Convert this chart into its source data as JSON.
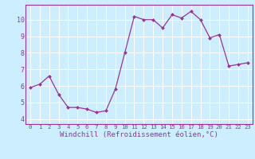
{
  "x": [
    0,
    1,
    2,
    3,
    4,
    5,
    6,
    7,
    8,
    9,
    10,
    11,
    12,
    13,
    14,
    15,
    16,
    17,
    18,
    19,
    20,
    21,
    22,
    23
  ],
  "y": [
    5.9,
    6.1,
    6.6,
    5.5,
    4.7,
    4.7,
    4.6,
    4.4,
    4.5,
    5.8,
    8.0,
    10.2,
    10.0,
    10.0,
    9.5,
    10.3,
    10.1,
    10.5,
    10.0,
    8.9,
    9.1,
    7.2,
    7.3,
    7.4
  ],
  "line_color": "#993399",
  "marker": "D",
  "marker_size": 2.0,
  "linewidth": 0.9,
  "xlabel": "Windchill (Refroidissement éolien,°C)",
  "xlabel_fontsize": 6.5,
  "ylabel_ticks": [
    4,
    5,
    6,
    7,
    8,
    9,
    10
  ],
  "xtick_labels": [
    "0",
    "1",
    "2",
    "3",
    "4",
    "5",
    "6",
    "7",
    "8",
    "9",
    "10",
    "11",
    "12",
    "13",
    "14",
    "15",
    "16",
    "17",
    "18",
    "19",
    "20",
    "21",
    "22",
    "23"
  ],
  "xlim": [
    -0.5,
    23.5
  ],
  "ylim": [
    3.7,
    10.9
  ],
  "bg_color": "#cceeff",
  "grid_color": "#ffffff",
  "tick_color": "#993399",
  "label_color": "#993399",
  "border_color": "#993399",
  "xtick_fontsize": 5.2,
  "ytick_fontsize": 6.0
}
